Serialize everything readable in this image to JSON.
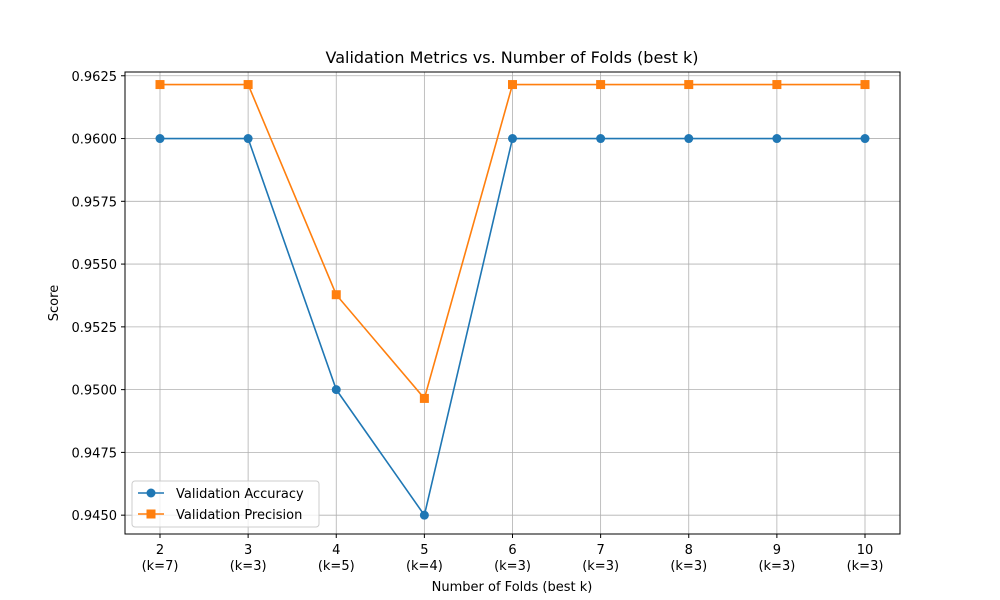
{
  "chart_data": {
    "type": "line",
    "title": "Validation Metrics vs. Number of Folds (best k)",
    "xlabel": "Number of Folds (best k)",
    "ylabel": "Score",
    "categories": [
      "2",
      "3",
      "4",
      "5",
      "6",
      "7",
      "8",
      "9",
      "10"
    ],
    "sublabels": [
      "(k=7)",
      "(k=3)",
      "(k=5)",
      "(k=4)",
      "(k=3)",
      "(k=3)",
      "(k=3)",
      "(k=3)",
      "(k=3)"
    ],
    "series": [
      {
        "name": "Validation Accuracy",
        "color": "#1f77b4",
        "marker": "circle",
        "values": [
          0.96,
          0.96,
          0.95,
          0.945,
          0.96,
          0.96,
          0.96,
          0.96,
          0.96
        ]
      },
      {
        "name": "Validation Precision",
        "color": "#ff7f0e",
        "marker": "square",
        "values": [
          0.96215,
          0.96215,
          0.95378,
          0.94965,
          0.96215,
          0.96215,
          0.96215,
          0.96215,
          0.96215
        ]
      }
    ],
    "ylim": [
      0.94425,
      0.96265
    ],
    "yticks": [
      "0.9450",
      "0.9475",
      "0.9500",
      "0.9525",
      "0.9550",
      "0.9575",
      "0.9600",
      "0.9625"
    ],
    "grid": true,
    "legend_position": "lower-left"
  }
}
